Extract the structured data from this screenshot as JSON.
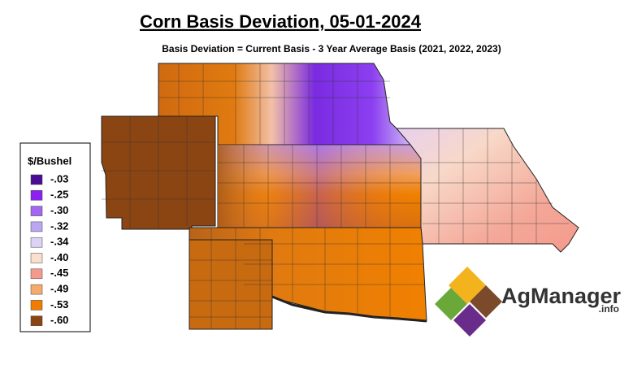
{
  "title": "Corn Basis Deviation, 05-01-2024",
  "subtitle": "Basis Deviation = Current Basis - 3 Year Average Basis (2021, 2022, 2023)",
  "legend": {
    "title": "$/Bushel",
    "items": [
      {
        "label": "-.03",
        "color": "#4a0c96"
      },
      {
        "label": "-.25",
        "color": "#8c1ff2"
      },
      {
        "label": "-.30",
        "color": "#a466f0"
      },
      {
        "label": "-.32",
        "color": "#bba6f2"
      },
      {
        "label": "-.34",
        "color": "#ddd2f6"
      },
      {
        "label": "-.40",
        "color": "#f9dfcc"
      },
      {
        "label": "-.45",
        "color": "#f39a8c"
      },
      {
        "label": "-.49",
        "color": "#f5aa6a"
      },
      {
        "label": "-.53",
        "color": "#f07c00"
      },
      {
        "label": "-.60",
        "color": "#8b4513"
      }
    ]
  },
  "logo": {
    "name": "AgManager",
    "suffix": ".info"
  }
}
